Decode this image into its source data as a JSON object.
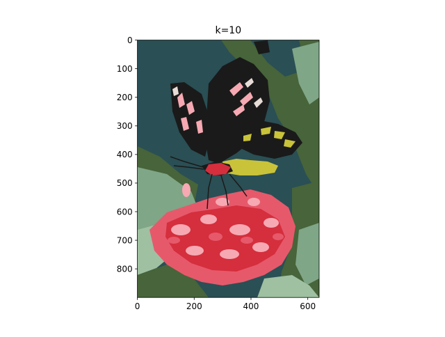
{
  "chart_data": {
    "type": "image",
    "title": "k=10",
    "xlim": [
      0,
      640
    ],
    "ylim": [
      900,
      0
    ],
    "x_ticks": [
      0,
      200,
      400,
      600
    ],
    "y_ticks": [
      0,
      100,
      200,
      300,
      400,
      500,
      600,
      700,
      800
    ],
    "image_description": "color-quantized photo (10 colors) of a black butterfly with pink and yellow markings on a cluster of red-pink flowers against green foliage",
    "palette": [
      "#2a4f55",
      "#47643a",
      "#7fa687",
      "#9fc0a1",
      "#1a1a1a",
      "#c9c33a",
      "#e6596b",
      "#f6a9b2",
      "#d52e3d",
      "#e8dcd6"
    ]
  }
}
